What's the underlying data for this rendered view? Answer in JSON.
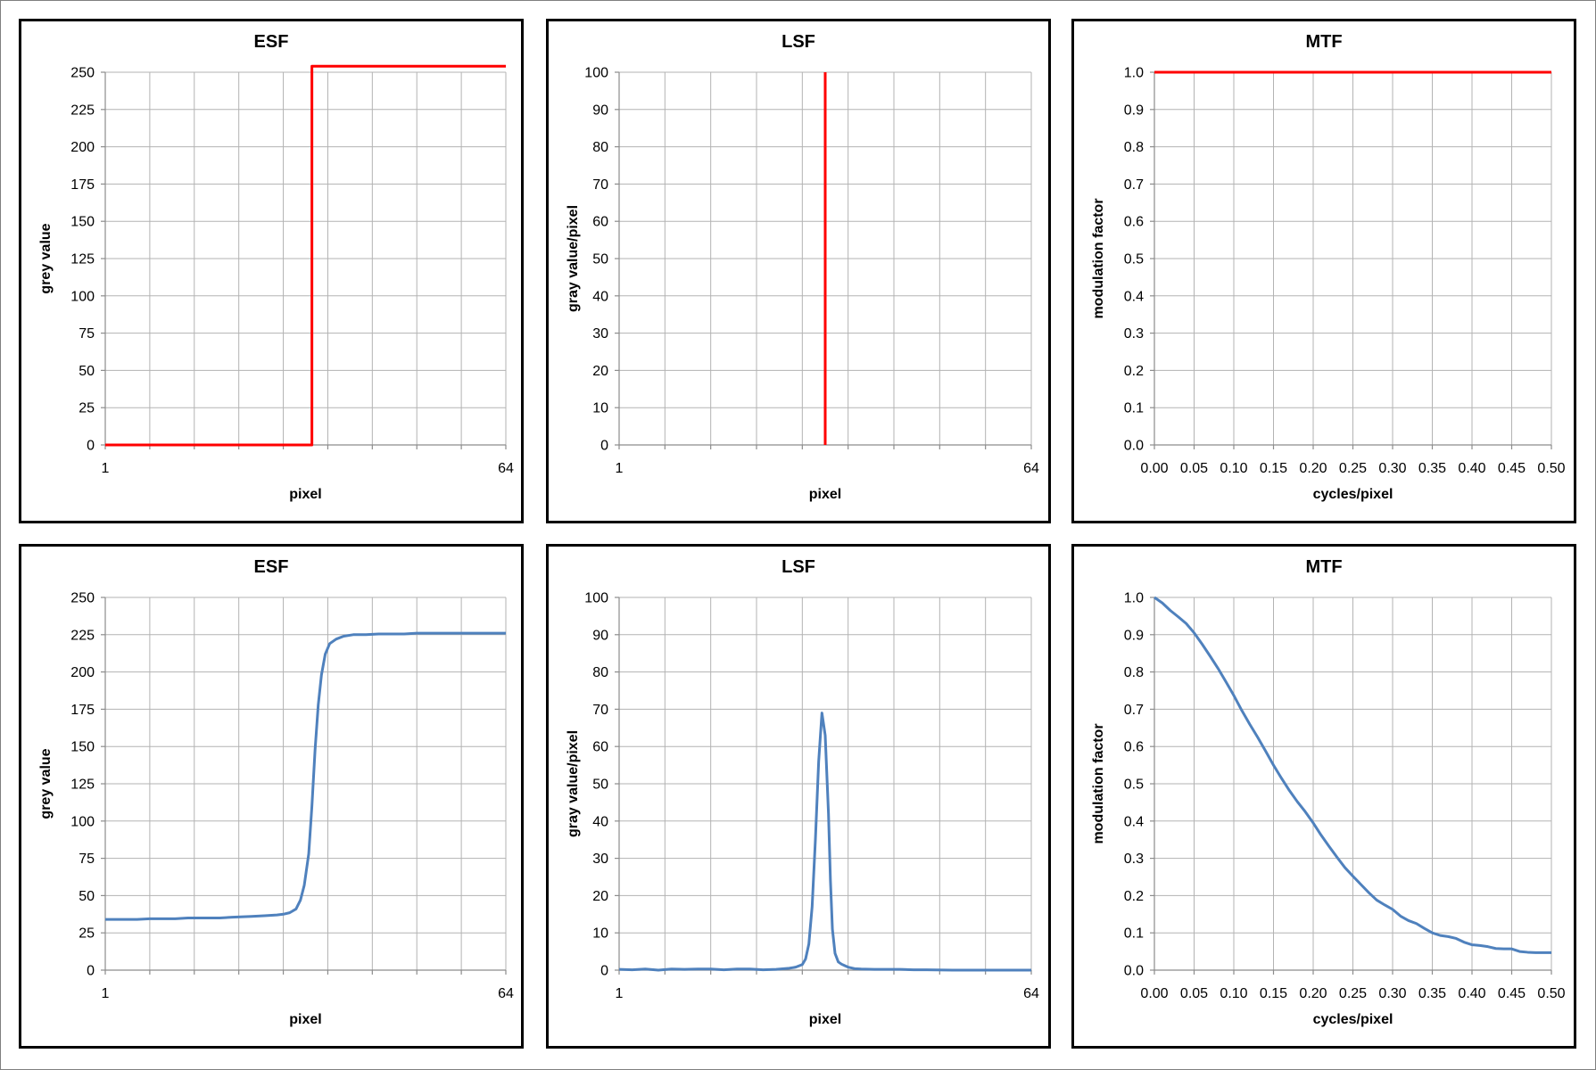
{
  "chart_data": [
    {
      "type": "line",
      "title": "ESF",
      "xlabel": "pixel",
      "ylabel": "grey value",
      "xlim": [
        1,
        64
      ],
      "ylim": [
        0,
        250
      ],
      "x_ticks": [
        "1",
        "64"
      ],
      "y_ticks": [
        "0",
        "25",
        "50",
        "75",
        "100",
        "125",
        "150",
        "175",
        "200",
        "225",
        "250"
      ],
      "grid": true,
      "line_color": "#ff0000",
      "series": [
        {
          "x": [
            1,
            33.5,
            33.5,
            64
          ],
          "y": [
            0,
            0,
            254,
            254
          ]
        }
      ]
    },
    {
      "type": "line",
      "title": "LSF",
      "xlabel": "pixel",
      "ylabel": "gray value/pixel",
      "xlim": [
        1,
        64
      ],
      "ylim": [
        0,
        100
      ],
      "x_ticks": [
        "1",
        "64"
      ],
      "y_ticks": [
        "0",
        "10",
        "20",
        "30",
        "40",
        "50",
        "60",
        "70",
        "80",
        "90",
        "100"
      ],
      "grid": true,
      "line_color": "#ff0000",
      "series": [
        {
          "x": [
            32.5,
            32.5
          ],
          "y": [
            0,
            100
          ]
        }
      ]
    },
    {
      "type": "line",
      "title": "MTF",
      "xlabel": "cycles/pixel",
      "ylabel": "modulation factor",
      "xlim": [
        0,
        0.5
      ],
      "ylim": [
        0,
        1
      ],
      "x_ticks": [
        "0.00",
        "0.05",
        "0.10",
        "0.15",
        "0.20",
        "0.25",
        "0.30",
        "0.35",
        "0.40",
        "0.45",
        "0.50"
      ],
      "y_ticks": [
        "0.0",
        "0.1",
        "0.2",
        "0.3",
        "0.4",
        "0.5",
        "0.6",
        "0.7",
        "0.8",
        "0.9",
        "1.0"
      ],
      "grid": true,
      "line_color": "#ff0000",
      "series": [
        {
          "x": [
            0,
            0.5
          ],
          "y": [
            1.0,
            1.0
          ]
        }
      ]
    },
    {
      "type": "line",
      "title": "ESF",
      "xlabel": "pixel",
      "ylabel": "grey value",
      "xlim": [
        1,
        64
      ],
      "ylim": [
        0,
        250
      ],
      "x_ticks": [
        "1",
        "64"
      ],
      "y_ticks": [
        "0",
        "25",
        "50",
        "75",
        "100",
        "125",
        "150",
        "175",
        "200",
        "225",
        "250"
      ],
      "grid": true,
      "line_color": "#4f81bd",
      "series": [
        {
          "x": [
            1,
            6,
            8,
            12,
            14,
            19,
            21,
            24,
            26,
            28,
            29,
            30,
            31,
            31.7,
            32.3,
            33,
            33.5,
            34,
            34.5,
            35,
            35.6,
            36.3,
            37.3,
            38.5,
            40,
            42,
            44,
            46,
            48,
            50,
            52,
            54,
            56,
            58,
            60,
            62,
            64
          ],
          "y": [
            34,
            34,
            34.5,
            34.5,
            35,
            35,
            35.5,
            36,
            36.5,
            37,
            37.5,
            38.5,
            41,
            47,
            57,
            78,
            110,
            148,
            178,
            198,
            212,
            219,
            222,
            224,
            225,
            225,
            225.5,
            225.5,
            225.5,
            226,
            226,
            226,
            226,
            226,
            226,
            226,
            226
          ]
        }
      ]
    },
    {
      "type": "line",
      "title": "LSF",
      "xlabel": "pixel",
      "ylabel": "gray value/pixel",
      "xlim": [
        1,
        64
      ],
      "ylim": [
        0,
        100
      ],
      "x_ticks": [
        "1",
        "64"
      ],
      "y_ticks": [
        "0",
        "10",
        "20",
        "30",
        "40",
        "50",
        "60",
        "70",
        "80",
        "90",
        "100"
      ],
      "grid": true,
      "line_color": "#4f81bd",
      "series": [
        {
          "x": [
            1,
            3,
            5,
            7,
            9,
            11,
            13,
            15,
            17,
            19,
            21,
            23,
            25,
            27,
            28,
            29,
            29.5,
            30,
            30.5,
            31,
            31.5,
            32,
            32.5,
            33,
            33.3,
            33.6,
            34,
            34.5,
            35,
            35.5,
            36,
            37,
            38,
            40,
            42,
            44,
            46,
            48,
            52,
            56,
            60,
            64
          ],
          "y": [
            0.2,
            0.1,
            0.3,
            0,
            0.3,
            0.2,
            0.3,
            0.3,
            0.1,
            0.3,
            0.3,
            0.1,
            0.2,
            0.5,
            0.8,
            1.5,
            3,
            7,
            17,
            35,
            56,
            69,
            63,
            42,
            24,
            11,
            4.5,
            2.2,
            1.6,
            1.2,
            0.8,
            0.4,
            0.3,
            0.2,
            0.2,
            0.2,
            0.1,
            0.1,
            0,
            0,
            0,
            0
          ]
        }
      ]
    },
    {
      "type": "line",
      "title": "MTF",
      "xlabel": "cycles/pixel",
      "ylabel": "modulation factor",
      "xlim": [
        0,
        0.5
      ],
      "ylim": [
        0,
        1
      ],
      "x_ticks": [
        "0.00",
        "0.05",
        "0.10",
        "0.15",
        "0.20",
        "0.25",
        "0.30",
        "0.35",
        "0.40",
        "0.45",
        "0.50"
      ],
      "y_ticks": [
        "0.0",
        "0.1",
        "0.2",
        "0.3",
        "0.4",
        "0.5",
        "0.6",
        "0.7",
        "0.8",
        "0.9",
        "1.0"
      ],
      "grid": true,
      "line_color": "#4f81bd",
      "series": [
        {
          "x": [
            0,
            0.01,
            0.02,
            0.03,
            0.04,
            0.05,
            0.06,
            0.07,
            0.08,
            0.09,
            0.1,
            0.11,
            0.12,
            0.13,
            0.14,
            0.15,
            0.16,
            0.17,
            0.18,
            0.19,
            0.2,
            0.21,
            0.22,
            0.23,
            0.24,
            0.25,
            0.26,
            0.27,
            0.28,
            0.29,
            0.3,
            0.31,
            0.32,
            0.33,
            0.34,
            0.35,
            0.36,
            0.37,
            0.38,
            0.39,
            0.4,
            0.41,
            0.42,
            0.43,
            0.44,
            0.45,
            0.46,
            0.47,
            0.48,
            0.49,
            0.5
          ],
          "y": [
            1.0,
            0.985,
            0.965,
            0.948,
            0.93,
            0.905,
            0.875,
            0.843,
            0.81,
            0.774,
            0.737,
            0.697,
            0.66,
            0.625,
            0.588,
            0.55,
            0.515,
            0.482,
            0.452,
            0.425,
            0.395,
            0.362,
            0.332,
            0.303,
            0.275,
            0.252,
            0.23,
            0.208,
            0.188,
            0.175,
            0.163,
            0.145,
            0.133,
            0.125,
            0.112,
            0.1,
            0.093,
            0.09,
            0.085,
            0.075,
            0.068,
            0.066,
            0.063,
            0.058,
            0.057,
            0.057,
            0.05,
            0.048,
            0.047,
            0.047,
            0.047
          ]
        }
      ]
    }
  ]
}
